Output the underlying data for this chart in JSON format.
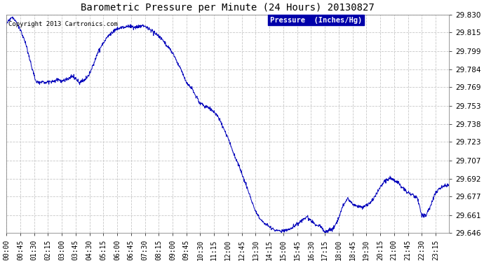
{
  "title": "Barometric Pressure per Minute (24 Hours) 20130827",
  "copyright": "Copyright 2013 Cartronics.com",
  "legend_label": "Pressure  (Inches/Hg)",
  "line_color": "#0000BB",
  "background_color": "#ffffff",
  "grid_color": "#c8c8c8",
  "ylim": [
    29.646,
    29.83
  ],
  "yticks": [
    29.646,
    29.661,
    29.677,
    29.692,
    29.707,
    29.723,
    29.738,
    29.753,
    29.769,
    29.784,
    29.799,
    29.815,
    29.83
  ],
  "xtick_labels": [
    "00:00",
    "00:45",
    "01:30",
    "02:15",
    "03:00",
    "03:45",
    "04:30",
    "05:15",
    "06:00",
    "06:45",
    "07:30",
    "08:15",
    "09:00",
    "09:45",
    "10:30",
    "11:15",
    "12:00",
    "12:45",
    "13:30",
    "14:15",
    "15:00",
    "15:45",
    "16:30",
    "17:15",
    "18:00",
    "18:45",
    "19:30",
    "20:15",
    "21:00",
    "21:45",
    "22:30",
    "23:15"
  ],
  "title_fontsize": 10,
  "tick_fontsize": 7,
  "ytick_fontsize": 7.5
}
